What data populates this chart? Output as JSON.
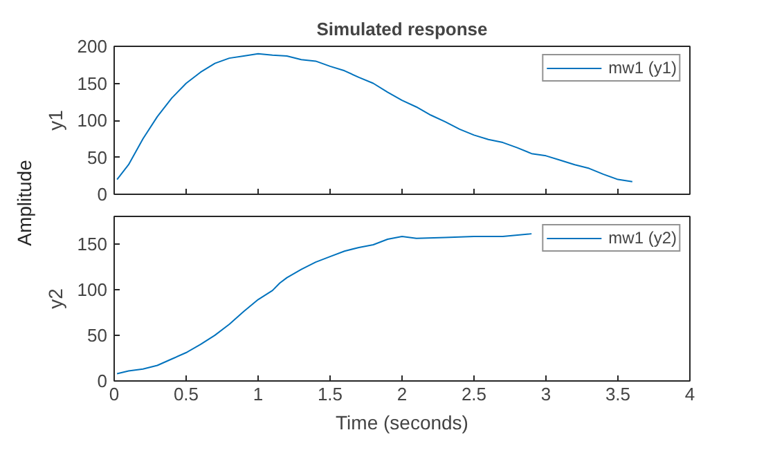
{
  "chart_data": [
    {
      "type": "line",
      "title": "Simulated response",
      "ylabel": "y1",
      "annotations": [
        "Amplitude"
      ],
      "xlim": [
        0,
        4
      ],
      "xticks": [
        0,
        0.5,
        1,
        1.5,
        2,
        2.5,
        3,
        3.5,
        4
      ],
      "ylim": [
        0,
        200
      ],
      "yticks": [
        0,
        50,
        100,
        150,
        200
      ],
      "tick_labels": "y",
      "grid": false,
      "legend": "top right",
      "x": [
        0.02,
        0.1,
        0.2,
        0.3,
        0.4,
        0.5,
        0.6,
        0.7,
        0.8,
        0.9,
        1.0,
        1.1,
        1.2,
        1.3,
        1.4,
        1.5,
        1.6,
        1.7,
        1.8,
        1.9,
        2.0,
        2.1,
        2.2,
        2.3,
        2.4,
        2.5,
        2.6,
        2.7,
        2.8,
        2.9,
        3.0,
        3.1,
        3.2,
        3.3,
        3.4,
        3.5,
        3.6
      ],
      "series": [
        {
          "name": "mw1 (y1)",
          "color": "#0072bd",
          "values": [
            20,
            40,
            75,
            105,
            130,
            150,
            165,
            177,
            184,
            187,
            190,
            188,
            187,
            182,
            180,
            173,
            167,
            158,
            150,
            138,
            127,
            118,
            107,
            98,
            88,
            80,
            74,
            70,
            63,
            55,
            52,
            46,
            40,
            35,
            27,
            20,
            17
          ]
        }
      ]
    },
    {
      "type": "line",
      "xlabel": "Time (seconds)",
      "ylabel": "y2",
      "xlim": [
        0,
        4
      ],
      "xticks": [
        0,
        0.5,
        1,
        1.5,
        2,
        2.5,
        3,
        3.5,
        4
      ],
      "ylim": [
        0,
        180
      ],
      "yticks": [
        0,
        50,
        100,
        150
      ],
      "grid": false,
      "legend": "top right",
      "x": [
        0.02,
        0.1,
        0.2,
        0.3,
        0.4,
        0.5,
        0.6,
        0.7,
        0.8,
        0.9,
        1.0,
        1.1,
        1.15,
        1.2,
        1.3,
        1.4,
        1.5,
        1.6,
        1.7,
        1.8,
        1.9,
        2.0,
        2.1,
        2.3,
        2.5,
        2.7,
        2.9
      ],
      "series": [
        {
          "name": "mw1 (y2)",
          "color": "#0072bd",
          "values": [
            8,
            11,
            13,
            17,
            24,
            31,
            40,
            50,
            62,
            76,
            89,
            99,
            107,
            113,
            122,
            130,
            136,
            142,
            146,
            149,
            155,
            158,
            156,
            157,
            158,
            158,
            161
          ]
        }
      ]
    }
  ]
}
